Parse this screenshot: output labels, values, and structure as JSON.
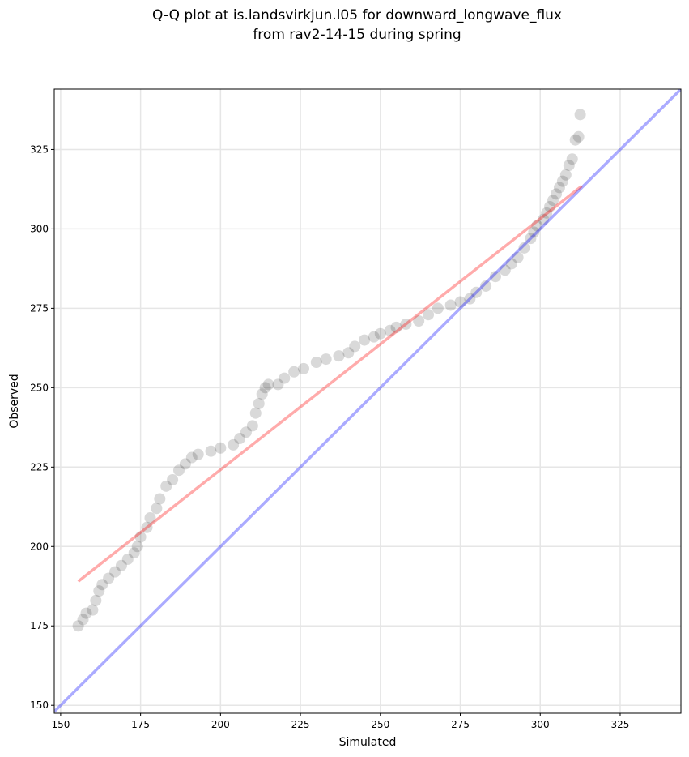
{
  "chart_data": {
    "type": "scatter",
    "title": [
      "Q-Q plot at is.landsvirkjun.l05 for downward_longwave_flux",
      "from rav2-14-15 during spring"
    ],
    "x_label": "Simulated",
    "y_label": "Observed",
    "xlim": [
      148,
      344
    ],
    "ylim": [
      147.5,
      344
    ],
    "xticks": [
      150,
      175,
      200,
      225,
      250,
      275,
      300,
      325
    ],
    "yticks": [
      150,
      175,
      200,
      225,
      250,
      275,
      300,
      325
    ],
    "grid": true,
    "points": {
      "color": "#000000",
      "x": [
        155.5,
        157,
        158,
        160,
        161,
        162,
        163,
        165,
        167,
        169,
        171,
        173,
        174,
        175,
        177,
        178,
        180,
        181,
        183,
        185,
        187,
        189,
        191,
        193,
        197,
        200,
        204,
        206,
        208,
        210,
        211,
        212,
        213,
        214,
        215,
        218,
        220,
        223,
        226,
        230,
        233,
        237,
        240,
        242,
        245,
        248,
        250,
        253,
        255,
        258,
        262,
        265,
        268,
        272,
        275,
        278,
        280,
        283,
        286,
        289,
        291,
        293,
        295,
        297,
        298,
        299,
        301,
        302,
        303,
        304,
        305,
        306,
        307,
        308,
        309,
        310,
        311,
        312,
        312.5
      ],
      "y": [
        175,
        177,
        179,
        180,
        183,
        186,
        188,
        190,
        192,
        194,
        196,
        198,
        200,
        203,
        206,
        209,
        212,
        215,
        219,
        221,
        224,
        226,
        228,
        229,
        230,
        231,
        232,
        234,
        236,
        238,
        242,
        245,
        248,
        250,
        251,
        251,
        253,
        255,
        256,
        258,
        259,
        260,
        261,
        263,
        265,
        266,
        267,
        268,
        269,
        270,
        271,
        273,
        275,
        276,
        277,
        278,
        280,
        282,
        285,
        287,
        289,
        291,
        294,
        297,
        299,
        301,
        303,
        305,
        307,
        309,
        311,
        313,
        315,
        317,
        320,
        322,
        328,
        329,
        336
      ]
    },
    "lines": [
      {
        "color": "#0000ff",
        "x": [
          148,
          344
        ],
        "y": [
          148,
          344
        ]
      },
      {
        "color": "#ff0000",
        "x": [
          155.5,
          313
        ],
        "y": [
          189,
          313.5
        ]
      }
    ]
  }
}
